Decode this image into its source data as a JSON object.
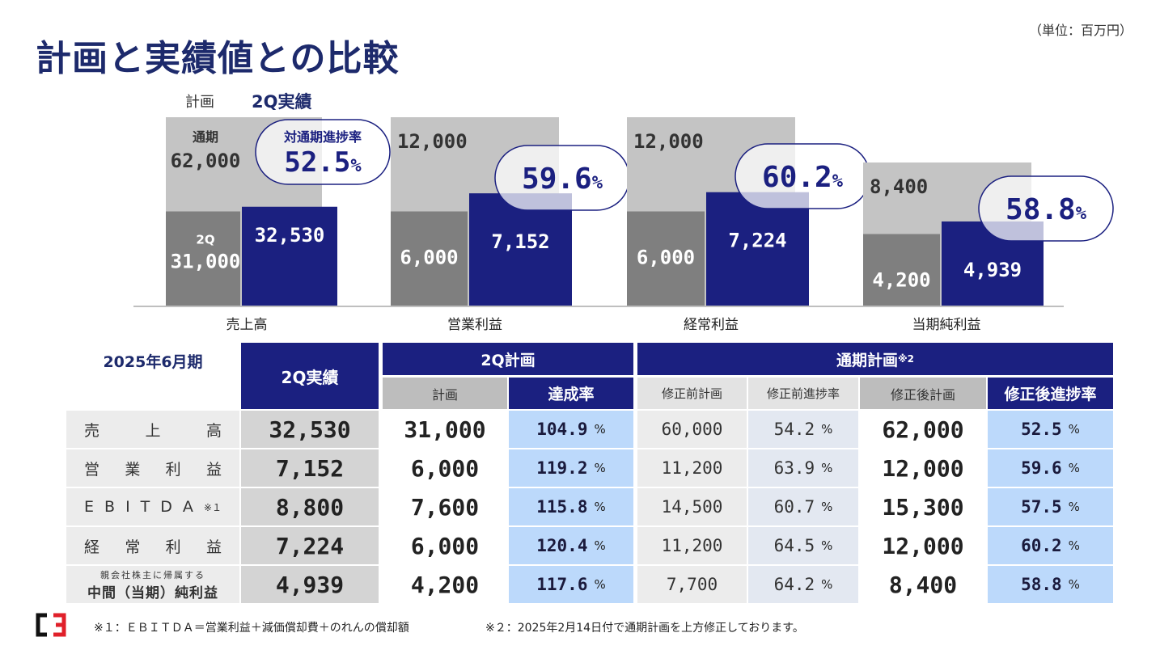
{
  "header": {
    "title": "計画と実績値との比較",
    "unit": "（単位：百万円）",
    "legend_plan": "計画",
    "legend_actual": "2Q実績"
  },
  "colors": {
    "plan_full": "#c4c4c4",
    "plan_2q": "#7f7f7f",
    "actual": "#1b2080",
    "title": "#1d2a6c",
    "highlight_blue": "#bcd9fb"
  },
  "chart_data": {
    "type": "bar",
    "title": "計画と実績値との比較",
    "unit": "百万円",
    "categories": [
      "売上高",
      "営業利益",
      "経常利益",
      "当期純利益"
    ],
    "series": [
      {
        "name": "通期計画",
        "values": [
          62000,
          12000,
          12000,
          8400
        ]
      },
      {
        "name": "2Q計画",
        "values": [
          31000,
          6000,
          6000,
          4200
        ]
      },
      {
        "name": "2Q実績",
        "values": [
          32530,
          7152,
          7224,
          4939
        ]
      }
    ],
    "progress_pct": [
      52.5,
      59.6,
      60.2,
      58.8
    ],
    "value_labels_full": [
      "62,000",
      "12,000",
      "12,000",
      "8,400"
    ],
    "value_labels_2q": [
      "31,000",
      "6,000",
      "6,000",
      "4,200"
    ],
    "value_labels_actual": [
      "32,530",
      "7,152",
      "7,224",
      "4,939"
    ],
    "progress_labels": [
      "52.5",
      "59.6",
      "60.2",
      "58.8"
    ],
    "pct_sign": "%",
    "first_bar_top_label": "通期",
    "first_bar_2q_label": "2Q",
    "first_bubble_label": "対通期進捗率"
  },
  "table": {
    "period": "2025年6月期",
    "col_actual": "2Q実績",
    "group_2q": "2Q計画",
    "group_full": "通期計画",
    "group_full_note": "※2",
    "sub_plan": "計画",
    "sub_rate": "達成率",
    "sub_before_plan": "修正前計画",
    "sub_before_rate": "修正前進捗率",
    "sub_after_plan": "修正後計画",
    "sub_after_rate": "修正後進捗率",
    "pct_sign": "%",
    "rows": [
      {
        "label_chars": [
          "売",
          "上",
          "高"
        ],
        "actual": "32,530",
        "plan": "31,000",
        "rate": "104.9",
        "before_plan": "60,000",
        "before_rate": "54.2",
        "after_plan": "62,000",
        "after_rate": "52.5"
      },
      {
        "label_chars": [
          "営",
          "業",
          "利",
          "益"
        ],
        "actual": "7,152",
        "plan": "6,000",
        "rate": "119.2",
        "before_plan": "11,200",
        "before_rate": "63.9",
        "after_plan": "12,000",
        "after_rate": "59.6"
      },
      {
        "label_chars": [
          "E",
          "B",
          "I",
          "T",
          "D",
          "A",
          "※１"
        ],
        "actual": "8,800",
        "plan": "7,600",
        "rate": "115.8",
        "before_plan": "14,500",
        "before_rate": "60.7",
        "after_plan": "15,300",
        "after_rate": "57.5"
      },
      {
        "label_chars": [
          "経",
          "常",
          "利",
          "益"
        ],
        "actual": "7,224",
        "plan": "6,000",
        "rate": "120.4",
        "before_plan": "11,200",
        "before_rate": "64.5",
        "after_plan": "12,000",
        "after_rate": "60.2"
      },
      {
        "label_line1": "親会社株主に帰属する",
        "label_line2": "中間（当期）純利益",
        "actual": "4,939",
        "plan": "4,200",
        "rate": "117.6",
        "before_plan": "7,700",
        "before_rate": "64.2",
        "after_plan": "8,400",
        "after_rate": "58.8"
      }
    ]
  },
  "footer": {
    "note1": "※１：ＥＢＩＴＤＡ＝営業利益＋減価償却費＋のれんの償却額",
    "note2": "※２：2025年2月14日付で通期計画を上方修正しております。",
    "logo_text": "C3"
  }
}
